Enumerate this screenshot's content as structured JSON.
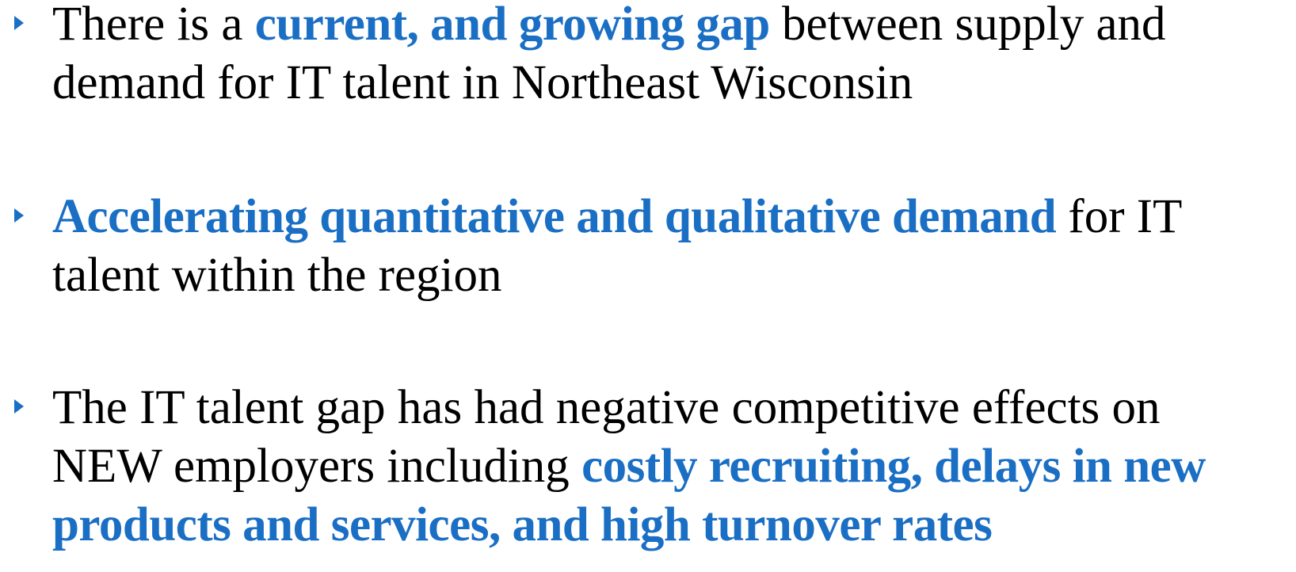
{
  "bullets": [
    [
      {
        "text": "There is a ",
        "emphasis": false
      },
      {
        "text": "current, and growing gap",
        "emphasis": true
      },
      {
        "text": " between supply and demand for IT talent in Northeast Wisconsin",
        "emphasis": false
      }
    ],
    [
      {
        "text": "Accelerating quantitative and qualitative demand",
        "emphasis": true
      },
      {
        "text": " for IT talent within the region",
        "emphasis": false
      }
    ],
    [
      {
        "text": "The IT talent gap has had negative competitive effects on NEW employers including ",
        "emphasis": false
      },
      {
        "text": "costly recruiting, delays in new products and services, and high turnover rates",
        "emphasis": true
      }
    ]
  ]
}
